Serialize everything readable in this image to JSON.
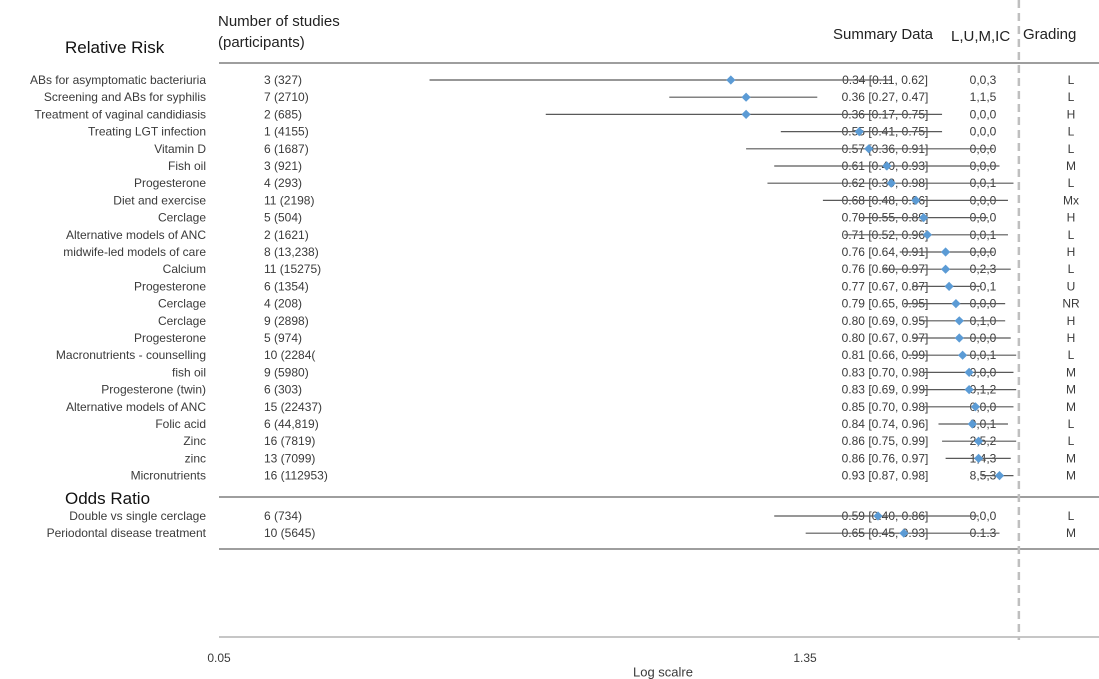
{
  "headers": {
    "relative_risk": "Relative Risk",
    "studies_line1": "Number of studies",
    "studies_line2": "(participants)",
    "summary": "Summary Data",
    "luic": "L,U,M,IC",
    "grading": "Grading",
    "odds_ratio": "Odds Ratio"
  },
  "colors": {
    "marker": "#5b9bd5",
    "ci_line": "#595959",
    "axis": "#8c8c8c",
    "ref_line": "#bfbfbf"
  },
  "chart_data": {
    "type": "forest",
    "xlabel": "Log scalre",
    "x_tick_labels": [
      "0.05",
      "1.35"
    ],
    "x_scale": "log",
    "reference_value": 1.0,
    "sections": [
      {
        "name": "Relative Risk",
        "rows": [
          {
            "label": "ABs for asymptomatic bacteriuria",
            "studies": "3 (327)",
            "summary": "0.34 [0.11, 0.62]",
            "est": 0.34,
            "lo": 0.11,
            "hi": 0.62,
            "luic": "0,0,3",
            "grade": "L"
          },
          {
            "label": "Screening and ABs for syphilis",
            "studies": "7 (2710)",
            "summary": "0.36 [0.27, 0.47]",
            "est": 0.36,
            "lo": 0.27,
            "hi": 0.47,
            "luic": "1,1,5",
            "grade": "L"
          },
          {
            "label": "Treatment of vaginal candidiasis",
            "studies": "2 (685)",
            "summary": "0.36 [0.17, 0.75]",
            "est": 0.36,
            "lo": 0.17,
            "hi": 0.75,
            "luic": "0,0,0",
            "grade": "H"
          },
          {
            "label": "Treating LGT  infection",
            "studies": "1 (4155)",
            "summary": "0.55 [0.41, 0.75]",
            "est": 0.55,
            "lo": 0.41,
            "hi": 0.75,
            "luic": "0,0,0",
            "grade": "L"
          },
          {
            "label": "Vitamin D",
            "studies": "6 (1687)",
            "summary": "0.57 [0.36, 0.91]",
            "est": 0.57,
            "lo": 0.36,
            "hi": 0.91,
            "luic": "0,0,0",
            "grade": "L"
          },
          {
            "label": "Fish oil",
            "studies": "3 (921)",
            "summary": "0.61 [0.40, 0.93]",
            "est": 0.61,
            "lo": 0.4,
            "hi": 0.93,
            "luic": "0,0,0",
            "grade": "M"
          },
          {
            "label": "Progesterone",
            "studies": "4 (293)",
            "summary": "0.62 [0.39, 0.98]",
            "est": 0.62,
            "lo": 0.39,
            "hi": 0.98,
            "luic": "0,0,1",
            "grade": "L"
          },
          {
            "label": "Diet and exercise",
            "studies": "11 (2198)",
            "summary": "0.68 [0.48, 0.96]",
            "est": 0.68,
            "lo": 0.48,
            "hi": 0.96,
            "luic": "0,0,0",
            "grade": "Mx"
          },
          {
            "label": "Cerclage",
            "studies": "5 (504)",
            "summary": "0.70 [0.55, 0.89]",
            "est": 0.7,
            "lo": 0.55,
            "hi": 0.89,
            "luic": "0,0,0",
            "grade": "H"
          },
          {
            "label": "Alternative models of ANC",
            "studies": "2 (1621)",
            "summary": "0.71 [0.52, 0.96]",
            "est": 0.71,
            "lo": 0.52,
            "hi": 0.96,
            "luic": "0,0,1",
            "grade": "L"
          },
          {
            "label": "midwife-led models of care",
            "studies": "8 (13,238)",
            "summary": "0.76 [0.64, 0.91]",
            "est": 0.76,
            "lo": 0.64,
            "hi": 0.91,
            "luic": "0,0,0",
            "grade": "H"
          },
          {
            "label": "Calcium",
            "studies": "11 (15275)",
            "summary": "0.76 [0.60, 0.97]",
            "est": 0.76,
            "lo": 0.6,
            "hi": 0.97,
            "luic": "0,2,3",
            "grade": "L"
          },
          {
            "label": "Progesterone",
            "studies": "6 (1354)",
            "summary": "0.77 [0.67, 0.87]",
            "est": 0.77,
            "lo": 0.67,
            "hi": 0.87,
            "luic": "0,0,1",
            "grade": "U"
          },
          {
            "label": "Cerclage",
            "studies": "4 (208)",
            "summary": "0.79 [0.65, 0.95]",
            "est": 0.79,
            "lo": 0.65,
            "hi": 0.95,
            "luic": "0,0,0",
            "grade": "NR"
          },
          {
            "label": "Cerclage",
            "studies": "9 (2898)",
            "summary": "0.80 [0.69, 0.95]",
            "est": 0.8,
            "lo": 0.69,
            "hi": 0.95,
            "luic": "0,1,0",
            "grade": "H"
          },
          {
            "label": "Progesterone",
            "studies": "5 (974)",
            "summary": "0.80 [0.67, 0.97]",
            "est": 0.8,
            "lo": 0.67,
            "hi": 0.97,
            "luic": "0,0,0",
            "grade": "H"
          },
          {
            "label": "Macronutrients - counselling",
            "studies": "10 (2284(",
            "summary": "0.81 [0.66, 0.99]",
            "est": 0.81,
            "lo": 0.66,
            "hi": 0.99,
            "luic": "0,0,1",
            "grade": "L"
          },
          {
            "label": "fish oil",
            "studies": "9 (5980)",
            "summary": "0.83 [0.70, 0.98]",
            "est": 0.83,
            "lo": 0.7,
            "hi": 0.98,
            "luic": "0,0,0",
            "grade": "M"
          },
          {
            "label": "Progesterone (twin)",
            "studies": "6 (303)",
            "summary": "0.83 [0.69, 0.99]",
            "est": 0.83,
            "lo": 0.69,
            "hi": 0.99,
            "luic": "0,1,2",
            "grade": "M"
          },
          {
            "label": "Alternative models of ANC",
            "studies": "15 (22437)",
            "summary": "0.85 [0.70, 0.98]",
            "est": 0.85,
            "lo": 0.7,
            "hi": 0.98,
            "luic": "0,0,0",
            "grade": "M"
          },
          {
            "label": "Folic acid",
            "studies": "6 (44,819)",
            "summary": "0.84 [0.74, 0.96]",
            "est": 0.84,
            "lo": 0.74,
            "hi": 0.96,
            "luic": "0,0,1",
            "grade": "L"
          },
          {
            "label": "Zinc",
            "studies": "16 (7819)",
            "summary": "0.86 [0.75, 0.99]",
            "est": 0.86,
            "lo": 0.75,
            "hi": 0.99,
            "luic": "2,5,2",
            "grade": "L"
          },
          {
            "label": "zinc",
            "studies": "13 (7099)",
            "summary": "0.86 [0.76, 0.97]",
            "est": 0.86,
            "lo": 0.76,
            "hi": 0.97,
            "luic": "1,4,3",
            "grade": "M"
          },
          {
            "label": "Micronutrients",
            "studies": "16 (112953)",
            "summary": "0.93 [0.87, 0.98]",
            "est": 0.93,
            "lo": 0.87,
            "hi": 0.98,
            "luic": "8,5,3",
            "grade": "M"
          }
        ]
      },
      {
        "name": "Odds Ratio",
        "rows": [
          {
            "label": "Double vs single cerclage",
            "studies": "6 (734)",
            "summary": "0.59 [0.40, 0.86]",
            "est": 0.59,
            "lo": 0.4,
            "hi": 0.86,
            "luic": "0,0,0",
            "grade": "L"
          },
          {
            "label": "Periodontal disease  treatment",
            "studies": "10 (5645)",
            "summary": "0.65 [0.45, 0.93]",
            "est": 0.65,
            "lo": 0.45,
            "hi": 0.93,
            "luic": "0.1.3",
            "grade": "M"
          }
        ]
      }
    ]
  }
}
